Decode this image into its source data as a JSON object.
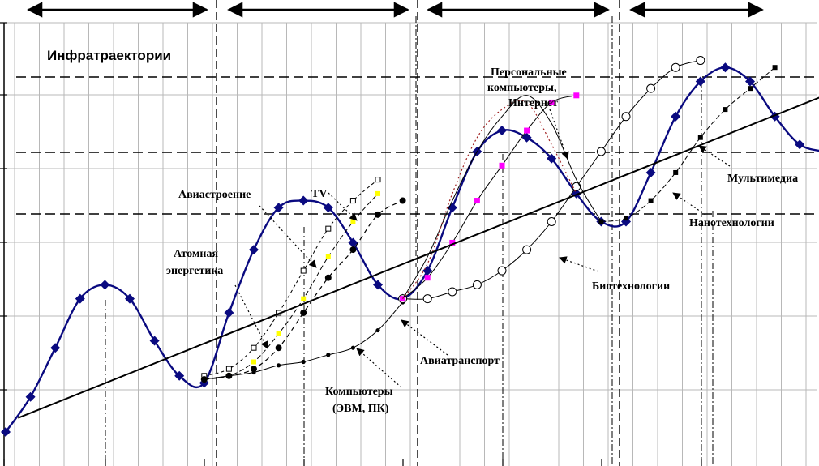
{
  "chart_data": {
    "type": "line",
    "title": "Инфратраектории",
    "xlabel": "",
    "ylabel": "",
    "grid": true,
    "colors": {
      "main": "#0a0a80",
      "accent_yellow": "#ffff00",
      "accent_magenta": "#ff00ff",
      "trend": "#000000",
      "dotted": "#a02020"
    },
    "series": [
      {
        "name": "",
        "style": "blue-diamond",
        "x": [
          0,
          1,
          2,
          3,
          4,
          5,
          6,
          7,
          8,
          9,
          10,
          11,
          12,
          13,
          14,
          15,
          16,
          17,
          18,
          19,
          20,
          21,
          22,
          23,
          24,
          25,
          26,
          27,
          28,
          29,
          30,
          31,
          32,
          33
        ],
        "y": [
          0.0,
          0.5,
          1.2,
          1.9,
          2.1,
          1.9,
          1.3,
          0.8,
          0.7,
          1.7,
          2.6,
          3.2,
          3.3,
          3.2,
          2.7,
          2.1,
          1.9,
          2.3,
          3.2,
          4.0,
          4.3,
          4.2,
          3.9,
          3.4,
          3.0,
          3.0,
          3.7,
          4.5,
          5.0,
          5.2,
          5.0,
          4.5,
          4.1,
          4.0
        ]
      },
      {
        "name": "Авиастроение",
        "style": "open-square",
        "x": [
          8,
          9,
          10,
          11,
          12,
          13,
          14,
          15
        ],
        "y": [
          0.8,
          0.9,
          1.2,
          1.7,
          2.3,
          2.9,
          3.3,
          3.6
        ]
      },
      {
        "name": "Атомная энергетика",
        "style": "yellow-square",
        "x": [
          8,
          9,
          10,
          11,
          12,
          13,
          14,
          15
        ],
        "y": [
          0.75,
          0.8,
          1.0,
          1.4,
          1.9,
          2.5,
          3.0,
          3.4
        ]
      },
      {
        "name": "TV",
        "style": "filled-circle-dashed",
        "x": [
          8,
          9,
          10,
          11,
          12,
          13,
          14,
          15,
          16
        ],
        "y": [
          0.75,
          0.8,
          0.9,
          1.2,
          1.7,
          2.2,
          2.6,
          3.1,
          3.3
        ]
      },
      {
        "name": "Компьютеры (ЭВМ, ПК)",
        "style": "small-dot",
        "x": [
          8,
          9,
          10,
          11,
          12,
          13,
          14,
          15,
          16
        ],
        "y": [
          0.75,
          0.8,
          0.85,
          0.95,
          1.0,
          1.1,
          1.2,
          1.45,
          1.85
        ]
      },
      {
        "name": "Авиатранспорт",
        "style": "open-circle",
        "x": [
          16,
          17,
          18,
          19,
          20,
          21,
          22,
          23,
          24,
          25,
          26,
          27,
          28
        ],
        "y": [
          1.9,
          1.9,
          2.0,
          2.1,
          2.3,
          2.6,
          3.0,
          3.5,
          4.0,
          4.5,
          4.9,
          5.2,
          5.3
        ]
      },
      {
        "name": "Персональные компьютеры, Интернет",
        "style": "magenta-square",
        "x": [
          16,
          17,
          18,
          19,
          20,
          21,
          22,
          23
        ],
        "y": [
          1.9,
          2.2,
          2.7,
          3.3,
          3.8,
          4.3,
          4.7,
          4.8
        ]
      },
      {
        "name": "Мультимедиа",
        "style": "filled-square",
        "x": [
          24,
          25,
          26,
          27,
          28,
          29,
          30,
          31
        ],
        "y": [
          3.0,
          3.05,
          3.3,
          3.7,
          4.2,
          4.6,
          4.9,
          5.2
        ]
      },
      {
        "name": "Биотехнологии",
        "style": "thin-line",
        "x": [
          16,
          17,
          18,
          19,
          20,
          21,
          22,
          23,
          24
        ],
        "y": [
          1.9,
          2.5,
          3.3,
          4.0,
          4.5,
          4.8,
          4.4,
          3.6,
          3.0
        ]
      },
      {
        "name": "Нанотехнологии",
        "style": "dotted-line",
        "x": [
          16,
          17,
          18,
          19,
          20,
          21,
          22,
          23
        ],
        "y": [
          1.9,
          2.4,
          3.4,
          4.2,
          4.6,
          4.7,
          4.1,
          3.4
        ]
      },
      {
        "name": "",
        "style": "trend",
        "x": [
          0.5,
          33
        ],
        "y": [
          0.2,
          4.8
        ]
      }
    ],
    "annotations": [
      "Авиастроение",
      "TV",
      "Атомная энергетика",
      "Компьютеры (ЭВМ, ПК)",
      "Авиатранспорт",
      "Персональные компьютеры, Интернет",
      "Мультимедиа",
      "Нанотехнологии",
      "Биотехнологии"
    ],
    "labels": {
      "aviastroenie": "Авиастроение",
      "tv": "TV",
      "atom1": "Атомная",
      "atom2": "энергетика",
      "comp1": "Компьютеры",
      "comp2": "(ЭВМ, ПК)",
      "aviatrans": "Авиатранспорт",
      "pc1": "Персональные",
      "pc2": "компьютеры,",
      "pc3": "Интернет",
      "multi": "Мультимедиа",
      "nano": "Нанотехнологии",
      "bio": "Биотехнологии"
    }
  }
}
